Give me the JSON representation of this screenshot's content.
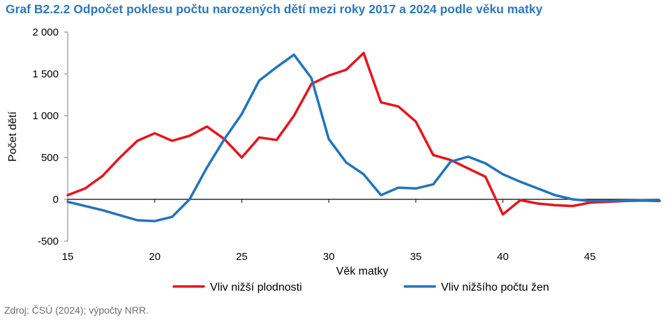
{
  "title": "Graf B2.2.2 Odpočet poklesu počtu narozených dětí mezi roky 2017 a 2024 podle věku matky",
  "source": "Zdroj: ČSÚ (2024); výpočty NRR.",
  "chart_data": {
    "type": "line",
    "xlabel": "Věk matky",
    "ylabel": "Počet dětí",
    "xlim": [
      15,
      49
    ],
    "ylim": [
      -500,
      2000
    ],
    "x_ticks": [
      15,
      20,
      25,
      30,
      35,
      40,
      45
    ],
    "y_ticks": [
      -500,
      0,
      500,
      1000,
      1500,
      2000
    ],
    "y_tick_labels": [
      "-500",
      "0",
      "500",
      "1 000",
      "1 500",
      "2 000"
    ],
    "grid": false,
    "legend": "bottom",
    "x": [
      15,
      16,
      17,
      18,
      19,
      20,
      21,
      22,
      23,
      24,
      25,
      26,
      27,
      28,
      29,
      30,
      31,
      32,
      33,
      34,
      35,
      36,
      37,
      38,
      39,
      40,
      41,
      42,
      43,
      44,
      45,
      46,
      47,
      48,
      49
    ],
    "series": [
      {
        "name": "Vliv nižší plodnosti",
        "color": "#e8141b",
        "values": [
          50,
          130,
          280,
          500,
          700,
          790,
          700,
          760,
          870,
          720,
          500,
          740,
          710,
          1000,
          1380,
          1480,
          1550,
          1750,
          1160,
          1110,
          930,
          530,
          470,
          370,
          270,
          -180,
          -10,
          -50,
          -70,
          -80,
          -40,
          -30,
          -20,
          -15,
          -20
        ]
      },
      {
        "name": "Vliv nižšího počtu žen",
        "color": "#1f74bf",
        "values": [
          -30,
          -80,
          -130,
          -190,
          -250,
          -260,
          -210,
          0,
          380,
          720,
          1020,
          1420,
          1580,
          1730,
          1450,
          720,
          440,
          300,
          50,
          140,
          130,
          180,
          450,
          510,
          430,
          300,
          210,
          130,
          50,
          0,
          -20,
          -20,
          -15,
          -10,
          -15
        ]
      }
    ]
  }
}
